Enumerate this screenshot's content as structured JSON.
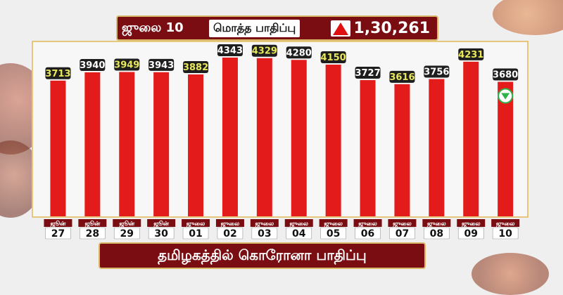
{
  "header": {
    "date": "ஜுலை 10",
    "label": "மொத்த பாதிப்பு",
    "total": "1,30,261",
    "trend_icon": "up-triangle"
  },
  "footer": {
    "title": "தமிழகத்தில் கொரோனா பாதிப்பு"
  },
  "colors": {
    "bar": "#e31b1b",
    "frame": "#7a0d12",
    "border": "#d8b96a",
    "label_bg": "#1e1e1e",
    "highlight": "#e8e85a",
    "down_marker": "#2cb34a"
  },
  "chart_data": {
    "type": "bar",
    "months": [
      "ஜூன்",
      "ஜூன்",
      "ஜூன்",
      "ஜூன்",
      "ஜுலை",
      "ஜுலை",
      "ஜுலை",
      "ஜுலை",
      "ஜுலை",
      "ஜுலை",
      "ஜுலை",
      "ஜுலை",
      "ஜுலை",
      "ஜுலை"
    ],
    "days": [
      "27",
      "28",
      "29",
      "30",
      "01",
      "02",
      "03",
      "04",
      "05",
      "06",
      "07",
      "08",
      "09",
      "10"
    ],
    "values": [
      3713,
      3940,
      3949,
      3943,
      3882,
      4343,
      4329,
      4280,
      4150,
      3727,
      3616,
      3756,
      4231,
      3680
    ],
    "highlighted": [
      true,
      false,
      true,
      false,
      true,
      false,
      true,
      false,
      true,
      false,
      true,
      false,
      true,
      false
    ],
    "last_trend": "down",
    "title": "தமிழகத்தில் கொரோனா பாதிப்பு"
  }
}
